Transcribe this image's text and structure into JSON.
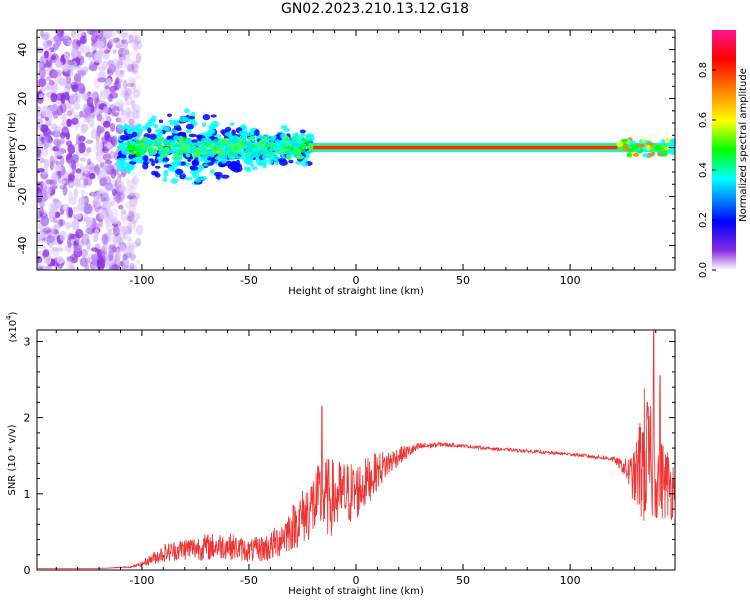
{
  "title": "GN02.2023.210.13.12.G18",
  "chart_data": [
    {
      "type": "heatmap",
      "title": "",
      "xlabel": "Height of straight line (km)",
      "ylabel": "Frequency (Hz)",
      "xlim": [
        -149,
        149
      ],
      "ylim": [
        -50,
        48
      ],
      "xticks": [
        -100,
        -50,
        0,
        50,
        100
      ],
      "yticks": [
        -40,
        -20,
        0,
        20,
        40
      ],
      "colorbar": {
        "label": "Normalized spectral amplitude",
        "range": [
          0,
          1
        ],
        "ticks": [
          "0.0",
          "0.2",
          "0.4",
          "0.6",
          "0.8"
        ],
        "colors": [
          "#ffffff",
          "#8a2be2",
          "#0000ff",
          "#00ffff",
          "#00ff00",
          "#ffff00",
          "#ff7f00",
          "#ff0000",
          "#ff1493"
        ]
      },
      "features": [
        {
          "x_range": [
            -149,
            -105
          ],
          "freq_range": [
            -50,
            48
          ],
          "level": "low-to-mid (violet), scattered"
        },
        {
          "x_range": [
            -100,
            -25
          ],
          "freq_range": [
            -15,
            10
          ],
          "level": "mid (blue/cyan/green), clustered near 0 Hz"
        },
        {
          "x_range": [
            -20,
            120
          ],
          "freq_range": [
            -1,
            1
          ],
          "level": "high (red), narrow line at 0 Hz"
        },
        {
          "x_range": [
            125,
            149
          ],
          "freq_range": [
            -4,
            4
          ],
          "level": "mid-to-high"
        }
      ]
    },
    {
      "type": "line",
      "title": "",
      "xlabel": "Height of straight line (km)",
      "ylabel": "SNR (10 * v/v)",
      "yscale_label": "(x10",
      "yscale_exp": "4",
      "yscale_close": ")",
      "xlim": [
        -149,
        149
      ],
      "ylim": [
        0,
        3.15
      ],
      "xticks": [
        -100,
        -50,
        0,
        50,
        100
      ],
      "yticks": [
        0,
        1,
        2,
        3
      ],
      "series": [
        {
          "color": "#ee3333",
          "x": [
            -149,
            -120,
            -105,
            -100,
            -95,
            -90,
            -80,
            -70,
            -60,
            -50,
            -40,
            -30,
            -20,
            -15,
            -10,
            -5,
            0,
            10,
            20,
            30,
            40,
            50,
            60,
            80,
            100,
            120,
            125,
            130,
            135,
            140,
            145,
            149
          ],
          "y": [
            0.02,
            0.02,
            0.04,
            0.08,
            0.15,
            0.22,
            0.28,
            0.3,
            0.32,
            0.25,
            0.3,
            0.55,
            0.85,
            0.95,
            0.95,
            1.0,
            1.02,
            1.3,
            1.5,
            1.62,
            1.65,
            1.63,
            1.6,
            1.56,
            1.52,
            1.46,
            1.35,
            1.2,
            1.5,
            1.25,
            1.15,
            1.05
          ],
          "spread": [
            0,
            0,
            0.01,
            0.03,
            0.08,
            0.12,
            0.15,
            0.18,
            0.18,
            0.15,
            0.2,
            0.3,
            0.45,
            0.55,
            0.5,
            0.45,
            0.4,
            0.25,
            0.12,
            0.05,
            0.03,
            0.02,
            0.02,
            0.02,
            0.02,
            0.03,
            0.1,
            0.35,
            1.0,
            0.6,
            0.5,
            0.4
          ]
        }
      ],
      "peaks": [
        {
          "x": -16,
          "y": 2.15
        },
        {
          "x": 139,
          "y": 3.15
        },
        {
          "x": 142,
          "y": 2.55
        }
      ]
    }
  ]
}
